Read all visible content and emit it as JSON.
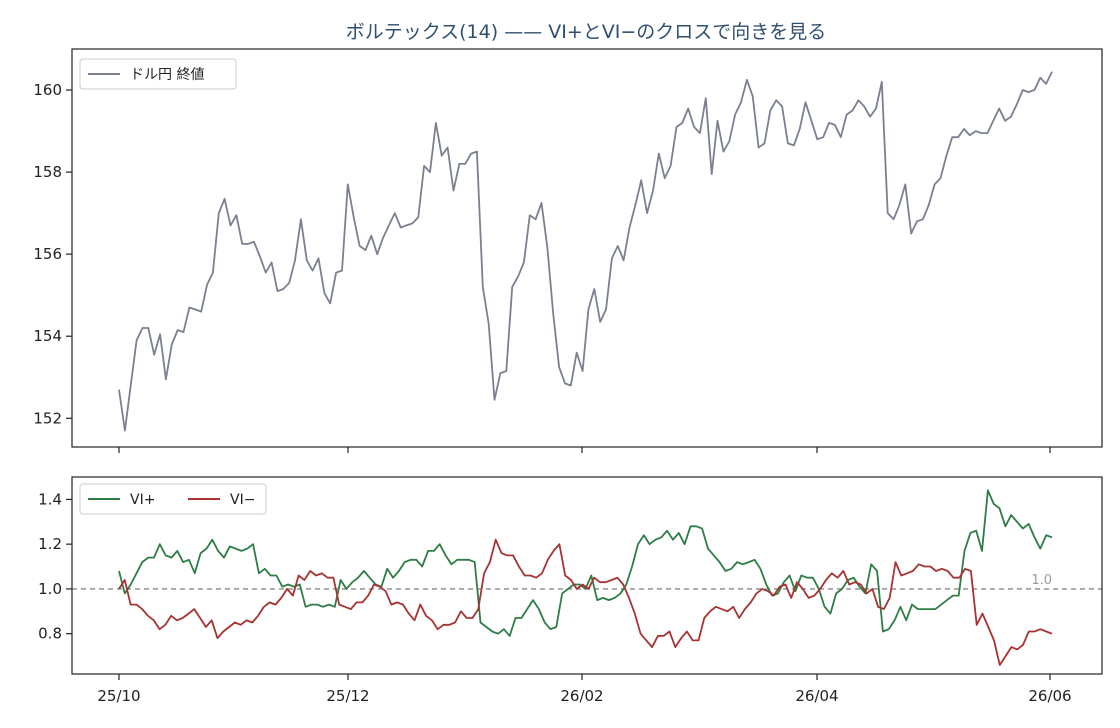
{
  "chart_data": {
    "type": "line",
    "title": "ボルテックス(14) —— VI+とVI−のクロスで向きを見る",
    "x_ticks": [
      "25/10",
      "25/12",
      "26/02",
      "26/04",
      "26/06"
    ],
    "panels": [
      {
        "name": "price",
        "ylim": [
          151.3,
          161.0
        ],
        "y_ticks": [
          152,
          154,
          156,
          158,
          160
        ],
        "legend_position": "top-left",
        "series": [
          {
            "name": "ドル円 終値",
            "color": "#7a8090",
            "values": [
              152.7,
              151.7,
              152.8,
              153.9,
              154.2,
              154.2,
              153.55,
              154.05,
              152.95,
              153.8,
              154.15,
              154.1,
              154.7,
              154.65,
              154.6,
              155.25,
              155.55,
              157.0,
              157.35,
              156.7,
              156.95,
              156.25,
              156.25,
              156.3,
              155.95,
              155.55,
              155.8,
              155.1,
              155.15,
              155.3,
              155.85,
              156.85,
              155.85,
              155.6,
              155.9,
              155.05,
              154.8,
              155.55,
              155.6,
              157.7,
              156.9,
              156.2,
              156.1,
              156.45,
              156.0,
              156.4,
              156.7,
              157.0,
              156.65,
              156.7,
              156.75,
              156.9,
              158.15,
              158.0,
              159.2,
              158.4,
              158.6,
              157.55,
              158.2,
              158.2,
              158.45,
              158.5,
              155.2,
              154.3,
              152.45,
              153.1,
              153.15,
              155.2,
              155.45,
              155.8,
              156.95,
              156.85,
              157.25,
              156.15,
              154.55,
              153.25,
              152.85,
              152.8,
              153.6,
              153.15,
              154.65,
              155.15,
              154.35,
              154.65,
              155.9,
              156.2,
              155.85,
              156.65,
              157.2,
              157.8,
              157.0,
              157.55,
              158.45,
              157.85,
              158.15,
              159.1,
              159.2,
              159.55,
              159.1,
              158.95,
              159.8,
              157.95,
              159.25,
              158.5,
              158.75,
              159.4,
              159.7,
              160.25,
              159.85,
              158.6,
              158.7,
              159.5,
              159.75,
              159.6,
              158.7,
              158.65,
              159.05,
              159.7,
              159.25,
              158.8,
              158.85,
              159.2,
              159.15,
              158.85,
              159.4,
              159.5,
              159.75,
              159.6,
              159.35,
              159.55,
              160.2,
              157.0,
              156.85,
              157.2,
              157.7,
              156.5,
              156.8,
              156.85,
              157.2,
              157.7,
              157.85,
              158.4,
              158.85,
              158.85,
              159.05,
              158.9,
              159.0,
              158.95,
              158.95,
              159.25,
              159.55,
              159.25,
              159.35,
              159.65,
              160.0,
              159.95,
              160.0,
              160.3,
              160.15,
              160.45
            ]
          }
        ]
      },
      {
        "name": "vortex",
        "ylim": [
          0.62,
          1.5
        ],
        "y_ticks": [
          0.8,
          1.0,
          1.2,
          1.4
        ],
        "legend_position": "top-left",
        "reference_line": {
          "value": 1.0,
          "label": "1.0",
          "style": "dashed",
          "color": "#888888"
        },
        "series": [
          {
            "name": "VI+",
            "color": "#2e7d46",
            "values": [
              1.08,
              0.98,
              1.02,
              1.07,
              1.12,
              1.14,
              1.14,
              1.2,
              1.15,
              1.14,
              1.17,
              1.12,
              1.13,
              1.07,
              1.16,
              1.18,
              1.22,
              1.17,
              1.14,
              1.19,
              1.18,
              1.17,
              1.18,
              1.2,
              1.07,
              1.09,
              1.06,
              1.06,
              1.01,
              1.02,
              1.01,
              1.02,
              0.92,
              0.93,
              0.93,
              0.92,
              0.93,
              0.92,
              1.04,
              1.0,
              1.03,
              1.05,
              1.08,
              1.05,
              1.02,
              1.01,
              1.09,
              1.05,
              1.08,
              1.12,
              1.13,
              1.13,
              1.1,
              1.17,
              1.17,
              1.2,
              1.15,
              1.11,
              1.13,
              1.13,
              1.13,
              1.12,
              0.85,
              0.83,
              0.81,
              0.8,
              0.82,
              0.79,
              0.87,
              0.87,
              0.91,
              0.95,
              0.91,
              0.85,
              0.82,
              0.83,
              0.98,
              1.0,
              1.02,
              1.02,
              1.0,
              1.06,
              0.95,
              0.96,
              0.95,
              0.96,
              0.98,
              1.02,
              1.1,
              1.2,
              1.24,
              1.2,
              1.22,
              1.23,
              1.26,
              1.22,
              1.25,
              1.2,
              1.28,
              1.28,
              1.27,
              1.18,
              1.15,
              1.12,
              1.08,
              1.09,
              1.12,
              1.11,
              1.12,
              1.13,
              1.09,
              1.02,
              0.97,
              0.98,
              1.03,
              1.06,
              0.99,
              1.06,
              1.05,
              1.05,
              1.0,
              0.92,
              0.89,
              0.98,
              1.0,
              1.04,
              1.05,
              1.01,
              0.98,
              1.11,
              1.08,
              0.81,
              0.82,
              0.86,
              0.92,
              0.86,
              0.93,
              0.91,
              0.91,
              0.91,
              0.91,
              0.93,
              0.95,
              0.97,
              0.97,
              1.17,
              1.25,
              1.26,
              1.17,
              1.44,
              1.38,
              1.36,
              1.28,
              1.33,
              1.3,
              1.27,
              1.29,
              1.23,
              1.18,
              1.24,
              1.23
            ]
          },
          {
            "name": "VI−",
            "color": "#a83232",
            "values": [
              1.0,
              1.04,
              0.93,
              0.93,
              0.91,
              0.88,
              0.86,
              0.82,
              0.84,
              0.88,
              0.86,
              0.87,
              0.89,
              0.91,
              0.87,
              0.83,
              0.86,
              0.78,
              0.81,
              0.83,
              0.85,
              0.84,
              0.86,
              0.85,
              0.88,
              0.92,
              0.94,
              0.93,
              0.96,
              1.0,
              0.97,
              1.06,
              1.04,
              1.08,
              1.06,
              1.07,
              1.05,
              1.05,
              0.93,
              0.92,
              0.91,
              0.94,
              0.94,
              0.97,
              1.02,
              1.01,
              0.99,
              0.93,
              0.94,
              0.93,
              0.89,
              0.86,
              0.93,
              0.88,
              0.86,
              0.82,
              0.84,
              0.84,
              0.85,
              0.9,
              0.87,
              0.87,
              0.91,
              1.07,
              1.12,
              1.22,
              1.16,
              1.15,
              1.15,
              1.1,
              1.06,
              1.06,
              1.05,
              1.07,
              1.13,
              1.17,
              1.2,
              1.06,
              1.04,
              1.0,
              1.02,
              1.0,
              1.05,
              1.03,
              1.03,
              1.04,
              1.05,
              1.02,
              0.96,
              0.89,
              0.8,
              0.77,
              0.74,
              0.79,
              0.79,
              0.81,
              0.74,
              0.78,
              0.81,
              0.77,
              0.77,
              0.87,
              0.9,
              0.92,
              0.91,
              0.9,
              0.92,
              0.87,
              0.91,
              0.94,
              0.98,
              1.0,
              0.99,
              0.97,
              1.01,
              1.02,
              0.96,
              1.03,
              1.0,
              0.96,
              0.97,
              1.0,
              1.04,
              1.07,
              1.05,
              1.08,
              1.02,
              1.03,
              1.02,
              0.98,
              1.0,
              0.92,
              0.91,
              0.96,
              1.12,
              1.06,
              1.07,
              1.08,
              1.11,
              1.1,
              1.1,
              1.08,
              1.09,
              1.08,
              1.05,
              1.05,
              1.09,
              1.08,
              0.84,
              0.89,
              0.83,
              0.77,
              0.66,
              0.7,
              0.74,
              0.73,
              0.75,
              0.81,
              0.81,
              0.82,
              0.81,
              0.8
            ]
          }
        ]
      }
    ]
  }
}
